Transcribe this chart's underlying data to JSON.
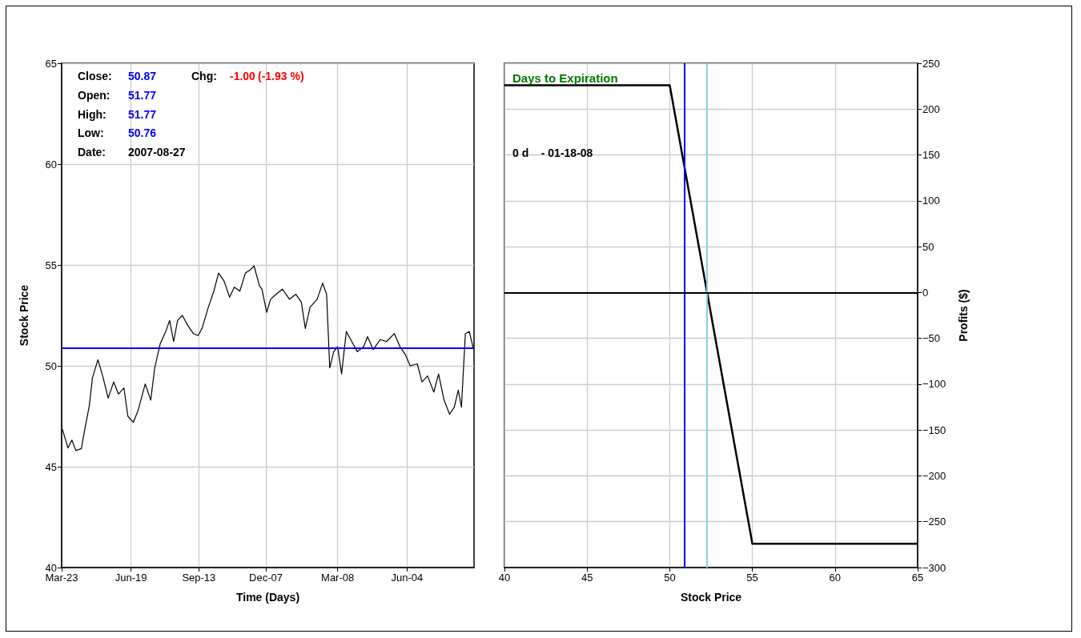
{
  "chart_data": [
    {
      "type": "line",
      "xlabel": "Time (Days)",
      "ylabel": "Stock Price",
      "color": "#000000",
      "marker": "none",
      "grid": true,
      "x": [
        "2006-03-24",
        "2006-03-31",
        "2006-04-05",
        "2006-04-10",
        "2006-04-17",
        "2006-04-22",
        "2006-04-27",
        "2006-05-01",
        "2006-05-08",
        "2006-05-14",
        "2006-05-21",
        "2006-05-28",
        "2006-06-03",
        "2006-06-10",
        "2006-06-15",
        "2006-06-22",
        "2006-06-28",
        "2006-07-07",
        "2006-07-14",
        "2006-07-19",
        "2006-07-26",
        "2006-08-02",
        "2006-08-07",
        "2006-08-12",
        "2006-08-17",
        "2006-08-23",
        "2006-08-30",
        "2006-09-06",
        "2006-09-12",
        "2006-09-17",
        "2006-09-25",
        "2006-10-02",
        "2006-10-08",
        "2006-10-15",
        "2006-10-22",
        "2006-10-28",
        "2006-11-04",
        "2006-11-11",
        "2006-11-17",
        "2006-11-22",
        "2006-11-29",
        "2006-12-02",
        "2006-12-08",
        "2006-12-13",
        "2006-12-20",
        "2006-12-28",
        "2007-01-06",
        "2007-01-14",
        "2007-01-21",
        "2007-01-26",
        "2007-02-01",
        "2007-02-10",
        "2007-02-17",
        "2007-02-22",
        "2007-02-26",
        "2007-03-03",
        "2007-03-08",
        "2007-03-13",
        "2007-03-19",
        "2007-03-26",
        "2007-04-02",
        "2007-04-10",
        "2007-04-15",
        "2007-04-22",
        "2007-05-01",
        "2007-05-09",
        "2007-05-19",
        "2007-05-26",
        "2007-06-02",
        "2007-06-08",
        "2007-06-17",
        "2007-06-23",
        "2007-06-30",
        "2007-07-08",
        "2007-07-14",
        "2007-07-21",
        "2007-07-28",
        "2007-08-03",
        "2007-08-08",
        "2007-08-12",
        "2007-08-17",
        "2007-08-22",
        "2007-08-27"
      ],
      "values": [
        46.85,
        45.93,
        46.32,
        45.8,
        45.9,
        47.0,
        48.0,
        49.4,
        50.3,
        49.5,
        48.4,
        49.2,
        48.6,
        48.9,
        47.5,
        47.2,
        47.8,
        49.1,
        48.3,
        49.9,
        51.1,
        51.7,
        52.25,
        51.2,
        52.25,
        52.5,
        52.0,
        51.6,
        51.5,
        51.85,
        52.9,
        53.7,
        54.6,
        54.2,
        53.4,
        53.9,
        53.7,
        54.6,
        54.75,
        54.95,
        53.95,
        53.8,
        52.65,
        53.3,
        53.55,
        53.8,
        53.3,
        53.55,
        53.15,
        51.85,
        52.9,
        53.3,
        54.1,
        53.55,
        49.9,
        50.7,
        50.95,
        49.6,
        51.7,
        51.2,
        50.7,
        50.95,
        51.45,
        50.8,
        51.3,
        51.2,
        51.6,
        50.95,
        50.55,
        50.0,
        50.1,
        49.2,
        49.5,
        48.7,
        49.6,
        48.3,
        47.6,
        47.95,
        48.8,
        47.95,
        51.6,
        51.7,
        50.87
      ],
      "xlim": [
        "2006-03-23",
        "2007-08-28"
      ],
      "xticks": [
        {
          "value": "2006-03-23",
          "label": "Mar-23"
        },
        {
          "value": "2006-06-19",
          "label": "Jun-19"
        },
        {
          "value": "2006-09-13",
          "label": "Sep-13"
        },
        {
          "value": "2006-12-07",
          "label": "Dec-07"
        },
        {
          "value": "2007-03-08",
          "label": "Mar-08"
        },
        {
          "value": "2007-06-04",
          "label": "Jun-04"
        }
      ],
      "ylim": [
        40,
        65
      ],
      "yticks": [
        40,
        45,
        50,
        55,
        60,
        65
      ],
      "ref_lines": [
        {
          "axis": "y",
          "value": 50.87,
          "color": "#0000ff"
        }
      ],
      "annotations": [
        "Close:",
        "50.87",
        "Chg:",
        "-1.00",
        "(-1.93 %)",
        "Open:",
        "51.77",
        "High:",
        "51.77",
        "Low:",
        "50.76",
        "Date:",
        "2007-08-27"
      ]
    },
    {
      "type": "line",
      "title": "Days to Expiration",
      "xlabel": "Stock Price",
      "ylabel": "Profits ($)",
      "color": "#000000",
      "marker": "none",
      "grid": true,
      "x": [
        40,
        50,
        55,
        65
      ],
      "values": [
        226,
        226,
        -274,
        -274
      ],
      "xlim": [
        40,
        65
      ],
      "xticks": [
        40,
        45,
        50,
        55,
        60,
        65
      ],
      "ylim": [
        -300,
        250
      ],
      "yticks": [
        -300,
        -250,
        -200,
        -150,
        -100,
        -50,
        0,
        50,
        100,
        150,
        200,
        250
      ],
      "ref_lines": [
        {
          "axis": "x",
          "value": 50.87,
          "color": "#0000ff"
        },
        {
          "axis": "x",
          "value": 52.26,
          "color": "#87ceeb"
        },
        {
          "axis": "y",
          "value": 0,
          "color": "#000000"
        }
      ],
      "annotations": [
        "0 d    - 01-18-08"
      ]
    }
  ]
}
